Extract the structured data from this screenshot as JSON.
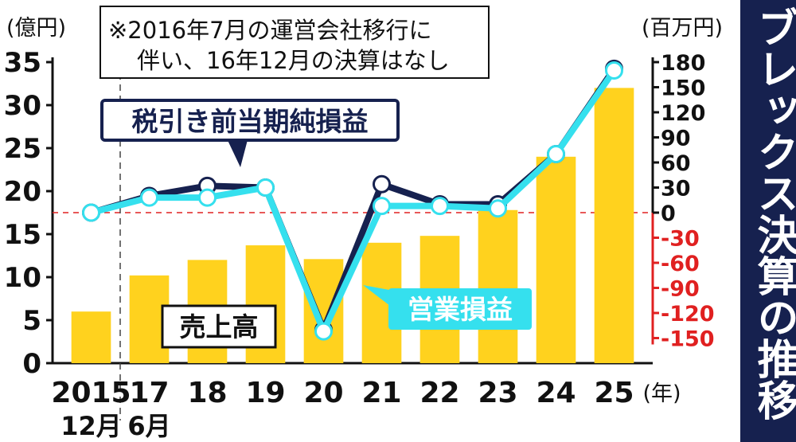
{
  "side_title": "ブレックス決算の推移",
  "note": {
    "line1": "※2016年7月の運営会社移行に",
    "line2": "伴い、16年12月の決算はなし"
  },
  "labels": {
    "pretax": "税引き前当期純損益",
    "operating": "営業損益",
    "revenue": "売上高"
  },
  "colors": {
    "bar": "#ffd21e",
    "operating": "#35e0ee",
    "pretax": "#16214f",
    "negative_axis": "#e02020"
  },
  "chart_data": {
    "type": "bar+line",
    "categories": [
      "2015",
      "17",
      "18",
      "19",
      "20",
      "21",
      "22",
      "23",
      "24",
      "25"
    ],
    "category_sublabels": [
      "12月",
      "6月",
      "",
      "",
      "",
      "",
      "",
      "",
      "",
      ""
    ],
    "x_unit": "(年)",
    "left_axis": {
      "unit": "(億円)",
      "range": [
        0,
        35
      ],
      "ticks": [
        "0",
        "5",
        "10",
        "15",
        "20",
        "25",
        "30",
        "35"
      ]
    },
    "right_axis": {
      "unit": "(百万円)",
      "range": [
        -180,
        180
      ],
      "ticks": [
        "-150",
        "-120",
        "-90",
        "-60",
        "-30",
        "0",
        "30",
        "60",
        "90",
        "120",
        "150",
        "180"
      ]
    },
    "series": [
      {
        "name": "売上高",
        "type": "bar",
        "axis": "left",
        "values": [
          6,
          10.2,
          12,
          13.7,
          12.1,
          14,
          14.8,
          17.8,
          24,
          32
        ]
      },
      {
        "name": "税引き前当期純損益",
        "type": "line",
        "axis": "right",
        "values": [
          0,
          20,
          32,
          30,
          -140,
          34,
          10,
          10,
          70,
          172
        ]
      },
      {
        "name": "営業損益",
        "type": "line",
        "axis": "right",
        "values": [
          0,
          18,
          18,
          30,
          -142,
          8,
          8,
          5,
          70,
          170
        ]
      }
    ]
  }
}
